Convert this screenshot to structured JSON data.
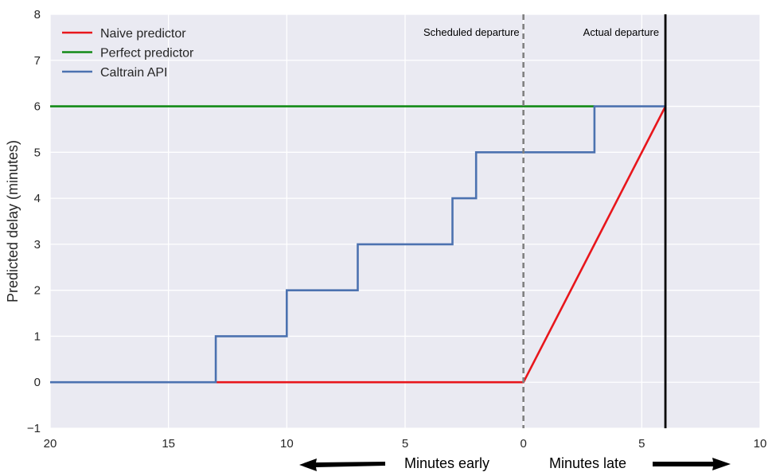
{
  "chart_data": {
    "type": "line",
    "title": "",
    "xlabel": "",
    "ylabel": "Predicted delay (minutes)",
    "x_direction": "reversed",
    "xlim": [
      20,
      -10
    ],
    "ylim": [
      -1,
      8
    ],
    "x_ticks": [
      20,
      15,
      10,
      5,
      0,
      -5,
      -10
    ],
    "x_tick_labels": [
      "20",
      "15",
      "10",
      "5",
      "0",
      "5",
      "10"
    ],
    "y_ticks": [
      -1,
      0,
      1,
      2,
      3,
      4,
      5,
      6,
      7,
      8
    ],
    "y_tick_labels": [
      "−1",
      "0",
      "1",
      "2",
      "3",
      "4",
      "5",
      "6",
      "7",
      "8"
    ],
    "grid": true,
    "legend_position": "top-left",
    "colors": {
      "background": "#eaeaf2",
      "grid": "#ffffff",
      "naive": "#e8161c",
      "perfect": "#138a17",
      "api": "#4c72b0",
      "scheduled_line": "#808080",
      "actual_line": "#000000"
    },
    "series": [
      {
        "name": "Naive predictor",
        "color": "#e8161c",
        "x": [
          13,
          0,
          -6
        ],
        "y": [
          0,
          0,
          6
        ]
      },
      {
        "name": "Perfect predictor",
        "color": "#138a17",
        "x": [
          20,
          -3
        ],
        "y": [
          6,
          6
        ]
      },
      {
        "name": "Caltrain API",
        "color": "#4c72b0",
        "x": [
          20,
          13,
          13,
          10,
          10,
          7,
          7,
          3,
          3,
          2,
          2,
          -3,
          -3,
          -6
        ],
        "y": [
          0,
          0,
          1,
          1,
          2,
          2,
          3,
          3,
          4,
          4,
          5,
          5,
          6,
          6
        ]
      }
    ],
    "annotations": {
      "scheduled": {
        "x": 0,
        "label": "Scheduled departure"
      },
      "actual": {
        "x": -6,
        "label": "Actual departure"
      }
    },
    "direction_labels": {
      "early": "Minutes early",
      "late": "Minutes late"
    }
  }
}
